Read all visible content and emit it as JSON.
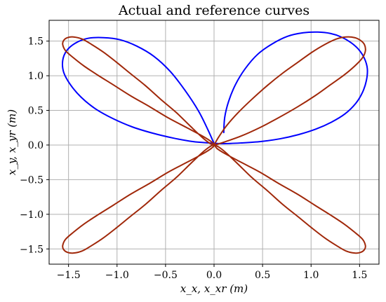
{
  "chart_data": {
    "type": "line",
    "title": "Actual and reference curves",
    "xlabel": "x_x, x_xr (m)",
    "ylabel": "x_y, x_yr (m)",
    "xlim": [
      -1.7,
      1.7
    ],
    "ylim": [
      -1.72,
      1.8
    ],
    "xticks": [
      -1.5,
      -1.0,
      -0.5,
      0.0,
      0.5,
      1.0,
      1.5
    ],
    "xtick_labels": [
      "−1.5",
      "−1.0",
      "−0.5",
      "0.0",
      "0.5",
      "1.0",
      "1.5"
    ],
    "yticks": [
      -1.5,
      -1.0,
      -0.5,
      0.0,
      0.5,
      1.0,
      1.5
    ],
    "ytick_labels": [
      "−1.5",
      "−1.0",
      "−0.5",
      "0.0",
      "0.5",
      "1.0",
      "1.5"
    ],
    "grid": true,
    "series": [
      {
        "color": "#0000ff",
        "x": [
          0.1,
          0.11,
          0.15,
          0.22,
          0.32,
          0.45,
          0.6,
          0.76,
          0.92,
          1.07,
          1.2,
          1.31,
          1.41,
          1.49,
          1.55,
          1.58,
          1.57,
          1.53,
          1.46,
          1.35,
          1.21,
          1.05,
          0.87,
          0.68,
          0.48,
          0.28,
          0.1,
          -0.05,
          -0.22,
          -0.42,
          -0.63,
          -0.84,
          -1.04,
          -1.22,
          -1.37,
          -1.48,
          -1.55,
          -1.56,
          -1.52,
          -1.43,
          -1.3,
          -1.14,
          -0.97,
          -0.8,
          -0.62,
          -0.45,
          -0.3,
          -0.16,
          -0.06,
          0.0
        ],
        "y": [
          0.18,
          0.4,
          0.63,
          0.87,
          1.1,
          1.31,
          1.46,
          1.57,
          1.62,
          1.63,
          1.61,
          1.56,
          1.48,
          1.38,
          1.25,
          1.1,
          0.93,
          0.76,
          0.6,
          0.45,
          0.33,
          0.23,
          0.15,
          0.09,
          0.05,
          0.03,
          0.02,
          0.03,
          0.05,
          0.1,
          0.17,
          0.26,
          0.38,
          0.52,
          0.69,
          0.87,
          1.05,
          1.22,
          1.36,
          1.47,
          1.54,
          1.55,
          1.52,
          1.43,
          1.28,
          1.06,
          0.79,
          0.49,
          0.21,
          0.02
        ]
      },
      {
        "color": "#a0280a",
        "x": [
          0.0,
          0.05,
          0.13,
          0.25,
          0.39,
          0.55,
          0.71,
          0.87,
          1.01,
          1.14,
          1.26,
          1.36,
          1.45,
          1.51,
          1.55,
          1.56,
          1.53,
          1.45,
          1.34,
          1.2,
          1.04,
          0.86,
          0.66,
          0.47,
          0.28,
          0.12,
          0.03,
          0.0,
          -0.05,
          -0.13,
          -0.25,
          -0.39,
          -0.55,
          -0.71,
          -0.87,
          -1.01,
          -1.14,
          -1.26,
          -1.36,
          -1.45,
          -1.51,
          -1.55,
          -1.56,
          -1.53,
          -1.45,
          -1.34,
          -1.2,
          -1.04,
          -0.86,
          -0.66,
          -0.47,
          -0.28,
          -0.12,
          -0.03,
          0.0,
          -0.03,
          -0.12,
          -0.28,
          -0.47,
          -0.66,
          -0.86,
          -1.04,
          -1.2,
          -1.34,
          -1.45,
          -1.53,
          -1.56,
          -1.55,
          -1.51,
          -1.45,
          -1.36,
          -1.26,
          -1.14,
          -1.01,
          -0.87,
          -0.71,
          -0.55,
          -0.39,
          -0.25,
          -0.13,
          -0.05,
          0.0,
          0.03,
          0.12,
          0.28,
          0.47,
          0.66,
          0.86,
          1.04,
          1.2,
          1.34,
          1.45,
          1.53,
          1.56,
          1.55,
          1.51,
          1.45,
          1.36,
          1.26,
          1.14,
          1.01,
          0.87,
          0.71,
          0.55,
          0.39,
          0.25,
          0.13,
          0.05,
          0.0
        ],
        "y": [
          0.0,
          0.12,
          0.28,
          0.47,
          0.66,
          0.86,
          1.04,
          1.2,
          1.34,
          1.45,
          1.53,
          1.56,
          1.55,
          1.51,
          1.45,
          1.36,
          1.26,
          1.14,
          1.01,
          0.87,
          0.71,
          0.55,
          0.39,
          0.25,
          0.13,
          0.05,
          0.01,
          0.0,
          0.03,
          0.12,
          0.28,
          0.47,
          0.66,
          0.86,
          1.04,
          1.2,
          1.34,
          1.45,
          1.53,
          1.56,
          1.55,
          1.51,
          1.45,
          1.36,
          1.26,
          1.14,
          1.01,
          0.87,
          0.71,
          0.55,
          0.39,
          0.25,
          0.13,
          0.05,
          0.0,
          -0.05,
          -0.13,
          -0.25,
          -0.39,
          -0.55,
          -0.71,
          -0.87,
          -1.01,
          -1.14,
          -1.26,
          -1.36,
          -1.45,
          -1.51,
          -1.55,
          -1.56,
          -1.53,
          -1.45,
          -1.34,
          -1.2,
          -1.04,
          -0.86,
          -0.66,
          -0.47,
          -0.28,
          -0.12,
          -0.03,
          0.0,
          -0.05,
          -0.13,
          -0.25,
          -0.39,
          -0.55,
          -0.71,
          -0.87,
          -1.01,
          -1.14,
          -1.26,
          -1.36,
          -1.45,
          -1.51,
          -1.55,
          -1.56,
          -1.53,
          -1.45,
          -1.34,
          -1.2,
          -1.04,
          -0.86,
          -0.66,
          -0.47,
          -0.28,
          -0.12,
          -0.03,
          0.0
        ]
      }
    ]
  }
}
